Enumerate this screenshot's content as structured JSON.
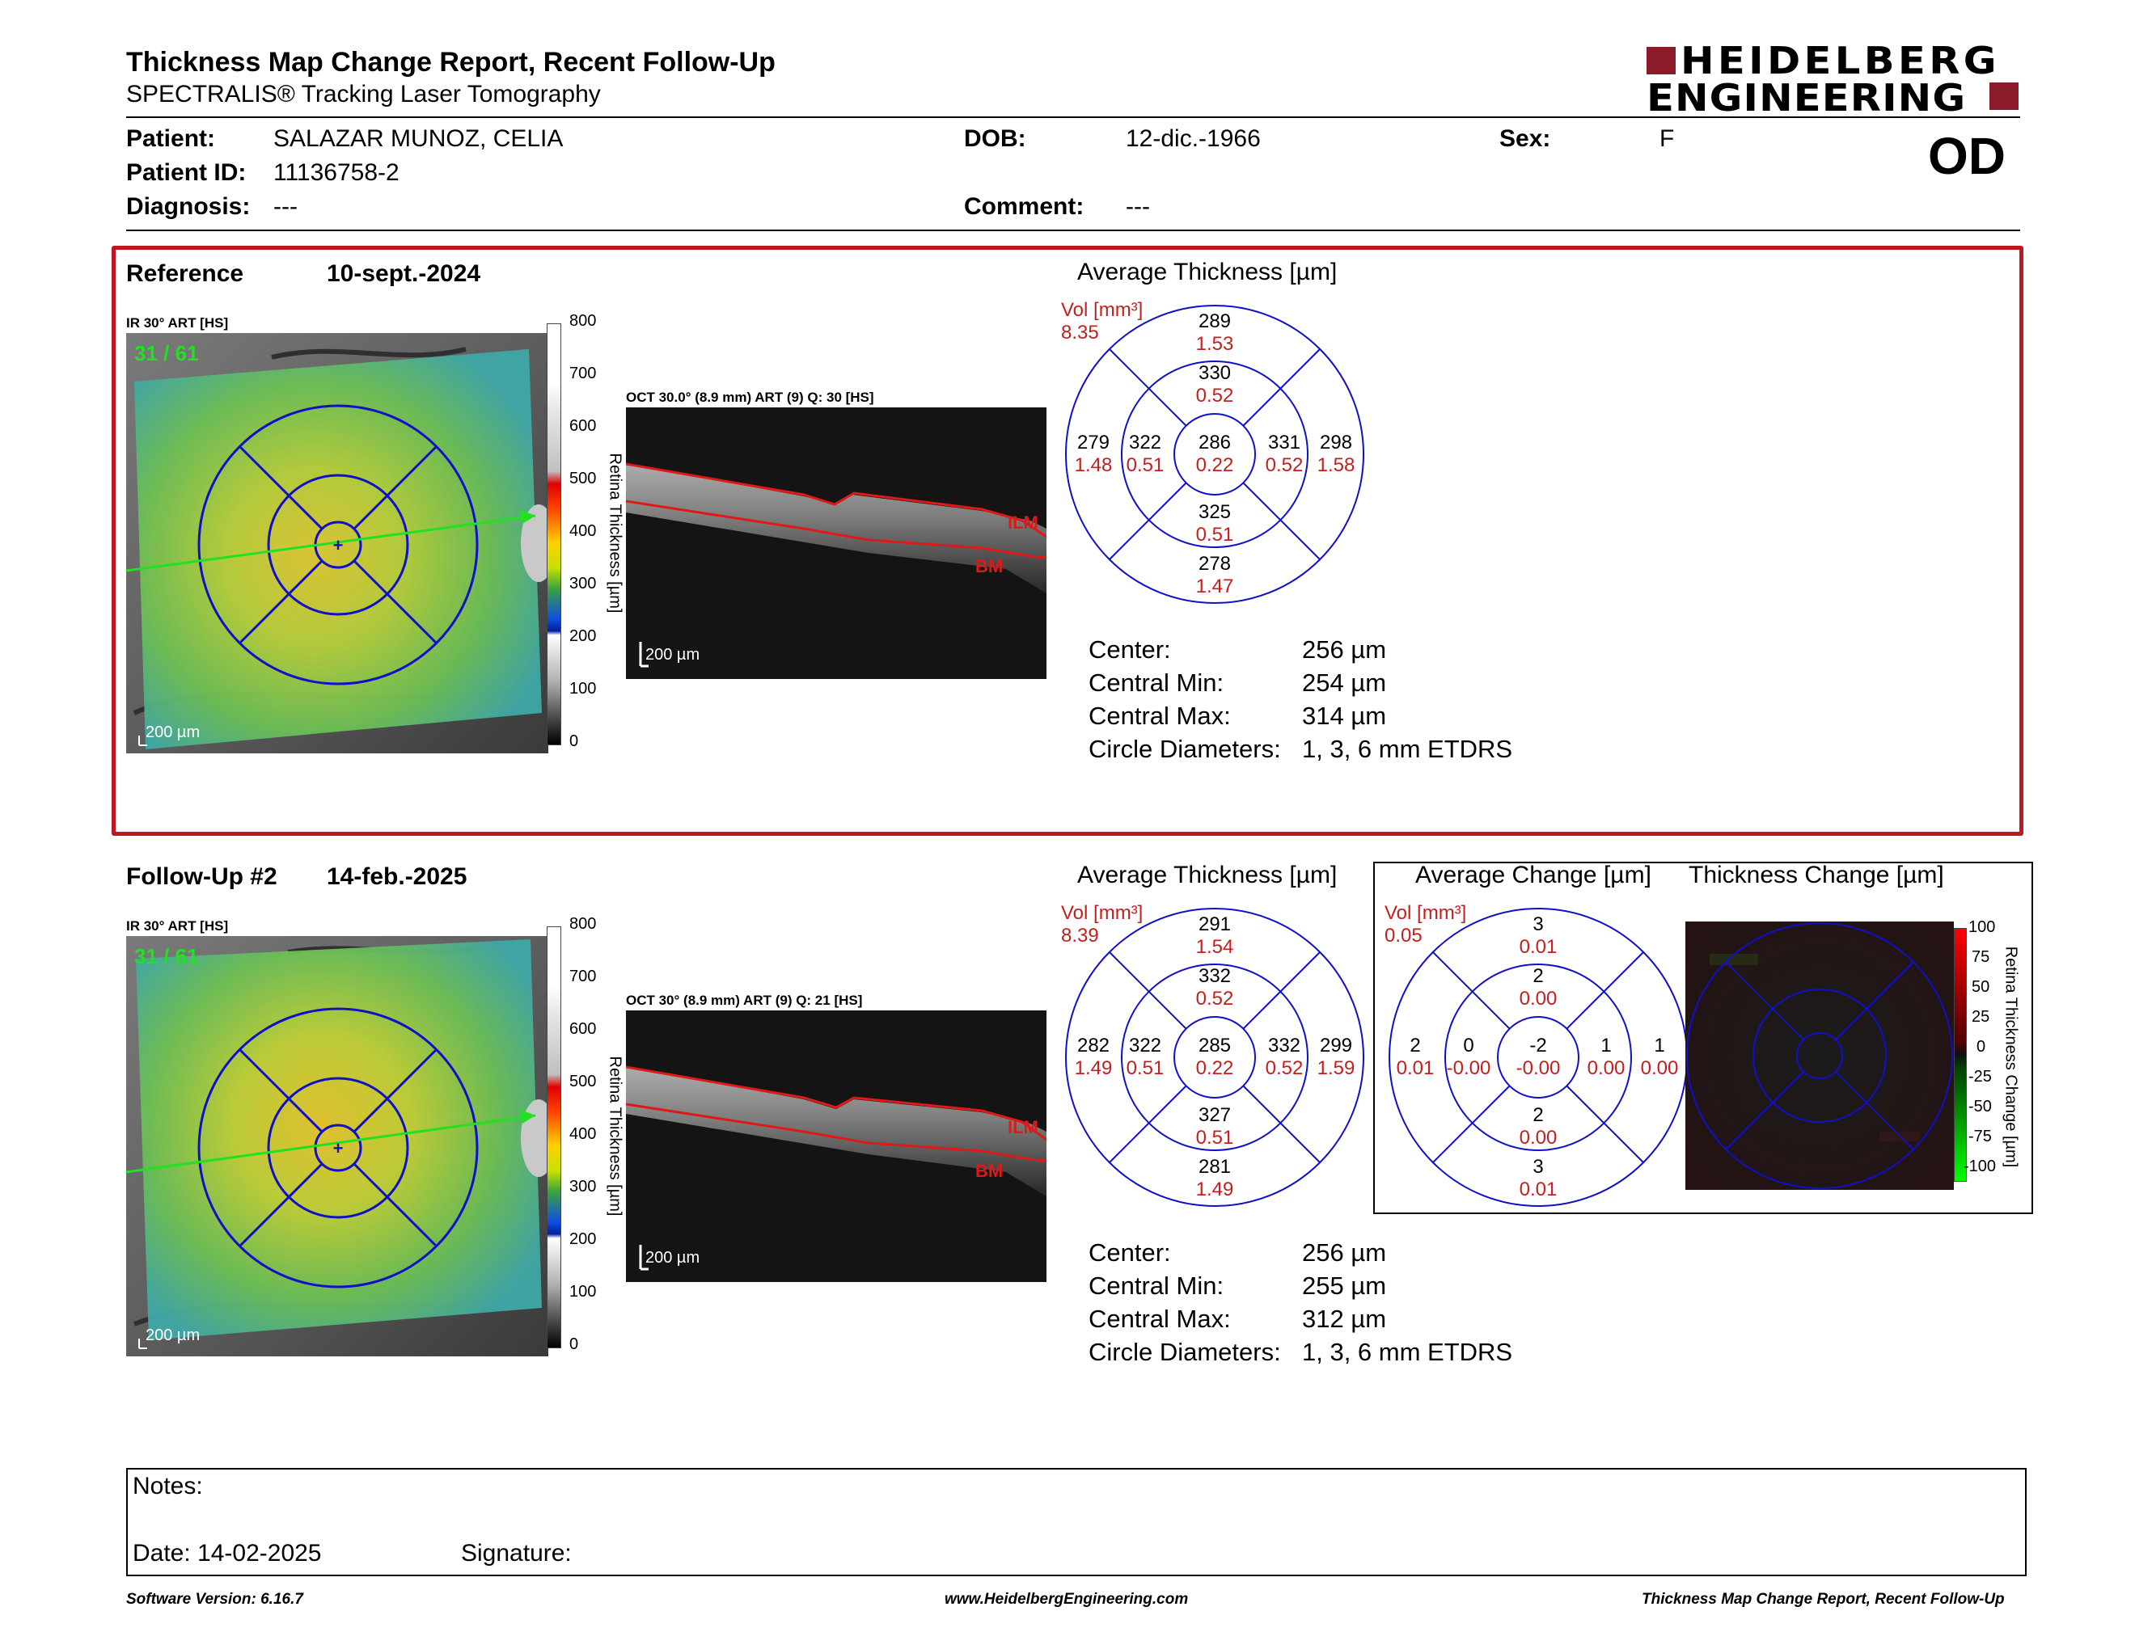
{
  "header": {
    "title": "Thickness Map Change Report, Recent Follow-Up",
    "subtitle": "SPECTRALIS® Tracking Laser Tomography",
    "brand_line1": "HEIDELBERG",
    "brand_line2": "ENGINEERING",
    "eye": "OD",
    "brand_color": "#8b1a2b"
  },
  "patient": {
    "patient_label": "Patient:",
    "patient_value": "SALAZAR MUNOZ, CELIA",
    "id_label": "Patient ID:",
    "id_value": "11136758-2",
    "diagnosis_label": "Diagnosis:",
    "diagnosis_value": "---",
    "dob_label": "DOB:",
    "dob_value": "12-dic.-1966",
    "comment_label": "Comment:",
    "comment_value": "---",
    "sex_label": "Sex:",
    "sex_value": "F"
  },
  "reference": {
    "label": "Reference",
    "date": "10-sept.-2024",
    "ir_label": "IR 30° ART [HS]",
    "ir_index": "31 / 61",
    "scale_label": "200 µm",
    "colorbar_ticks": [
      "800",
      "700",
      "600",
      "500",
      "400",
      "300",
      "200",
      "100",
      "0"
    ],
    "colorbar_title": "Retina Thickness [µm]",
    "oct_label": "OCT 30.0° (8.9 mm) ART (9) Q: 30 [HS]",
    "oct_scale": "200 µm",
    "ilm": "ILM",
    "bm": "BM",
    "avg_title": "Average Thickness [µm]",
    "vol_label": "Vol [mm³]",
    "vol_value": "8.35",
    "grid": {
      "center": {
        "t": "286",
        "v": "0.22"
      },
      "inner_sup": {
        "t": "330",
        "v": "0.52"
      },
      "inner_inf": {
        "t": "325",
        "v": "0.51"
      },
      "inner_nas": {
        "t": "322",
        "v": "0.51"
      },
      "inner_tem": {
        "t": "331",
        "v": "0.52"
      },
      "outer_sup": {
        "t": "289",
        "v": "1.53"
      },
      "outer_inf": {
        "t": "278",
        "v": "1.47"
      },
      "outer_nas": {
        "t": "279",
        "v": "1.48"
      },
      "outer_tem": {
        "t": "298",
        "v": "1.58"
      }
    },
    "stats": [
      {
        "label": "Center:",
        "value": "256 µm"
      },
      {
        "label": "Central Min:",
        "value": "254 µm"
      },
      {
        "label": "Central Max:",
        "value": "314 µm"
      },
      {
        "label": "Circle Diameters:",
        "value": "1, 3, 6 mm ETDRS"
      }
    ]
  },
  "followup": {
    "label": "Follow-Up #2",
    "date": "14-feb.-2025",
    "ir_label": "IR 30° ART [HS]",
    "ir_index": "31 / 61",
    "scale_label": "200 µm",
    "colorbar_ticks": [
      "800",
      "700",
      "600",
      "500",
      "400",
      "300",
      "200",
      "100",
      "0"
    ],
    "colorbar_title": "Retina Thickness [µm]",
    "oct_label": "OCT 30° (8.9 mm) ART (9) Q: 21 [HS]",
    "oct_scale": "200 µm",
    "ilm": "ILM",
    "bm": "BM",
    "avg_title": "Average Thickness [µm]",
    "vol_label": "Vol [mm³]",
    "vol_value": "8.39",
    "grid": {
      "center": {
        "t": "285",
        "v": "0.22"
      },
      "inner_sup": {
        "t": "332",
        "v": "0.52"
      },
      "inner_inf": {
        "t": "327",
        "v": "0.51"
      },
      "inner_nas": {
        "t": "322",
        "v": "0.51"
      },
      "inner_tem": {
        "t": "332",
        "v": "0.52"
      },
      "outer_sup": {
        "t": "291",
        "v": "1.54"
      },
      "outer_inf": {
        "t": "281",
        "v": "1.49"
      },
      "outer_nas": {
        "t": "282",
        "v": "1.49"
      },
      "outer_tem": {
        "t": "299",
        "v": "1.59"
      }
    },
    "stats": [
      {
        "label": "Center:",
        "value": "256 µm"
      },
      {
        "label": "Central Min:",
        "value": "255 µm"
      },
      {
        "label": "Central Max:",
        "value": "312 µm"
      },
      {
        "label": "Circle Diameters:",
        "value": "1, 3, 6 mm ETDRS"
      }
    ]
  },
  "change": {
    "avg_title": "Average Change [µm]",
    "map_title": "Thickness Change [µm]",
    "vol_label": "Vol [mm³]",
    "vol_value": "0.05",
    "grid": {
      "center": {
        "t": "-2",
        "v": "-0.00"
      },
      "inner_sup": {
        "t": "2",
        "v": "0.00"
      },
      "inner_inf": {
        "t": "2",
        "v": "0.00"
      },
      "inner_nas": {
        "t": "0",
        "v": "-0.00"
      },
      "inner_tem": {
        "t": "1",
        "v": "0.00"
      },
      "outer_sup": {
        "t": "3",
        "v": "0.01"
      },
      "outer_inf": {
        "t": "3",
        "v": "0.01"
      },
      "outer_nas": {
        "t": "2",
        "v": "0.01"
      },
      "outer_tem": {
        "t": "1",
        "v": "0.00"
      }
    },
    "colorbar_ticks": [
      "100",
      "75",
      "50",
      "25",
      "0",
      "-25",
      "-50",
      "-75",
      "-100"
    ],
    "colorbar_title": "Retina Thickness Change [µm]"
  },
  "notes": {
    "notes_label": "Notes:",
    "date_label": "Date: 14-02-2025",
    "signature_label": "Signature:"
  },
  "footer": {
    "version": "Software Version: 6.16.7",
    "website": "www.HeidelbergEngineering.com",
    "report": "Thickness Map Change Report, Recent Follow-Up"
  }
}
